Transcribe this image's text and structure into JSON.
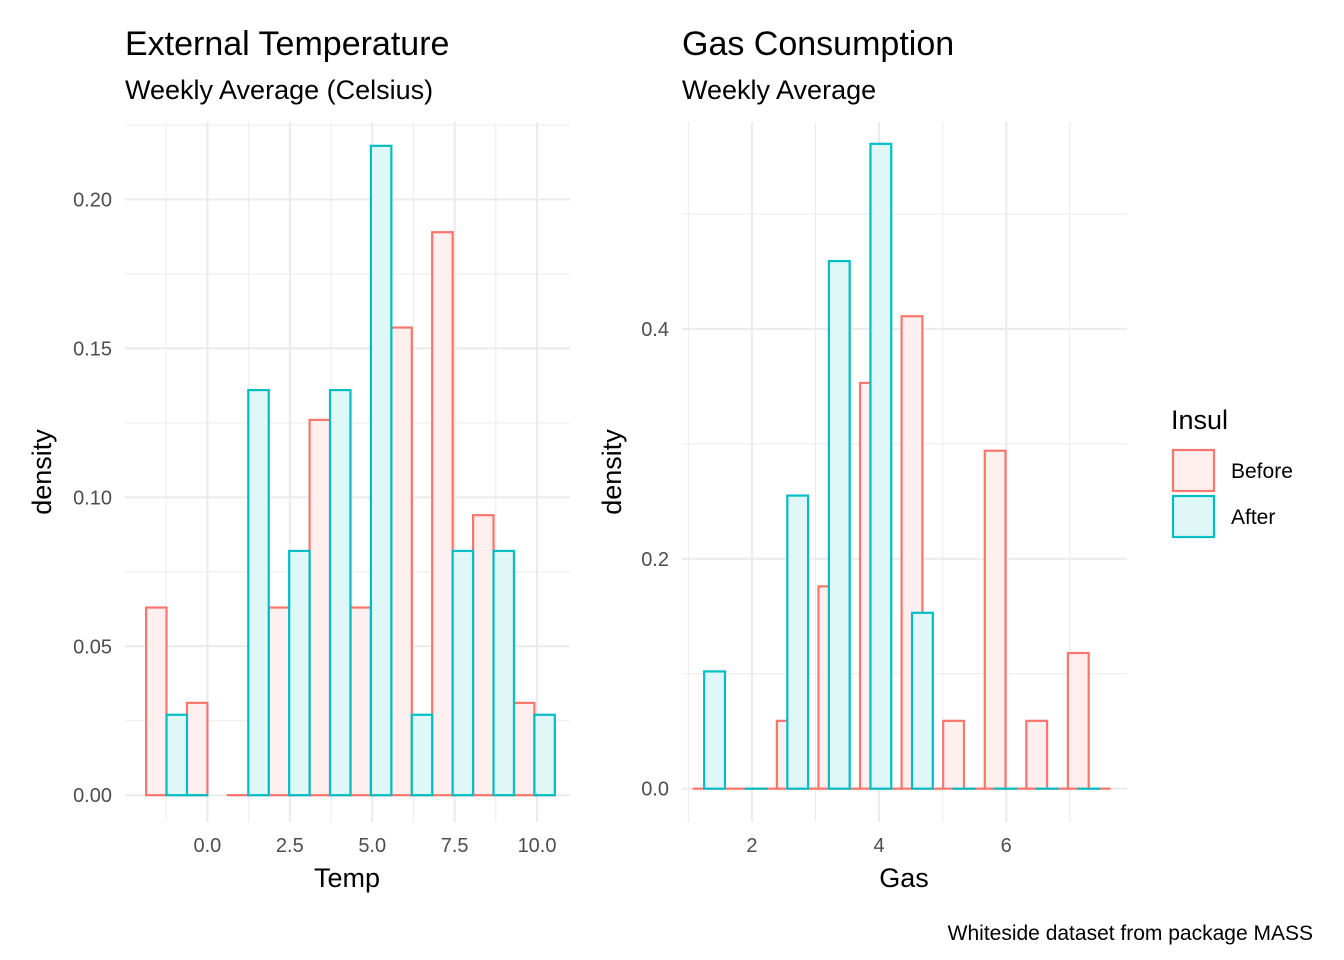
{
  "legend": {
    "title": "Insul",
    "items": [
      {
        "label": "Before",
        "stroke": "#f8766d",
        "fill": "#fff0ef"
      },
      {
        "label": "After",
        "stroke": "#00bfc4",
        "fill": "#e0f7f8"
      }
    ]
  },
  "caption": "Whiteside dataset from package MASS",
  "chart_data": [
    {
      "type": "bar",
      "subtype": "histogram-density",
      "title": "External Temperature",
      "subtitle": "Weekly Average (Celsius)",
      "xlabel": "Temp",
      "ylabel": "density",
      "xlim": [
        -2.5,
        11.0
      ],
      "ylim": [
        -0.009,
        0.226
      ],
      "x_ticks": [
        0.0,
        2.5,
        5.0,
        7.5,
        10.0
      ],
      "x_tick_labels": [
        "0.0",
        "2.5",
        "5.0",
        "7.5",
        "10.0"
      ],
      "y_ticks": [
        0.0,
        0.05,
        0.1,
        0.15,
        0.2
      ],
      "y_tick_labels": [
        "0.00",
        "0.05",
        "0.10",
        "0.15",
        "0.20"
      ],
      "grid": true,
      "bin_width": 0.62,
      "series": [
        {
          "name": "Before",
          "x": [
            -1.55,
            -0.93,
            -0.31,
            0.93,
            1.55,
            2.17,
            2.79,
            3.41,
            4.03,
            4.65,
            5.27,
            5.89,
            6.51,
            7.13,
            7.75,
            8.37,
            8.99,
            9.61,
            10.23
          ],
          "values": [
            0.063,
            0.0,
            0.031,
            0.0,
            0.0,
            0.063,
            0.0,
            0.126,
            0.0,
            0.063,
            0.0,
            0.157,
            0.0,
            0.189,
            0.0,
            0.094,
            0.0,
            0.031,
            0.0
          ]
        },
        {
          "name": "After",
          "x": [
            -0.93,
            -0.31,
            1.55,
            2.79,
            4.03,
            5.27,
            6.51,
            7.75,
            8.99,
            10.23
          ],
          "values": [
            0.027,
            0.0,
            0.136,
            0.082,
            0.136,
            0.218,
            0.027,
            0.082,
            0.082,
            0.027
          ]
        }
      ]
    },
    {
      "type": "bar",
      "subtype": "histogram-density",
      "title": "Gas Consumption",
      "subtitle": "Weekly Average",
      "xlabel": "Gas",
      "ylabel": "density",
      "xlim": [
        0.9,
        7.9
      ],
      "ylim": [
        -0.029,
        0.58
      ],
      "x_ticks": [
        2,
        4,
        6
      ],
      "x_tick_labels": [
        "2",
        "4",
        "6"
      ],
      "y_ticks": [
        0.0,
        0.2,
        0.4
      ],
      "y_tick_labels": [
        "0.0",
        "0.2",
        "0.4"
      ],
      "grid": true,
      "bin_width": 0.327,
      "series": [
        {
          "name": "Before",
          "x": [
            1.248,
            1.575,
            1.902,
            2.229,
            2.556,
            2.883,
            3.21,
            3.537,
            3.864,
            4.191,
            4.518,
            4.845,
            5.172,
            5.499,
            5.826,
            6.153,
            6.48,
            6.807,
            7.134,
            7.461
          ],
          "values": [
            0.0,
            0.0,
            0.0,
            0.0,
            0.059,
            0.0,
            0.176,
            0.0,
            0.353,
            0.0,
            0.411,
            0.0,
            0.059,
            0.0,
            0.294,
            0.0,
            0.059,
            0.0,
            0.118,
            0.0
          ]
        },
        {
          "name": "After",
          "x": [
            1.412,
            2.066,
            2.72,
            3.374,
            4.028,
            4.682,
            5.336,
            5.99,
            6.644,
            7.298
          ],
          "values": [
            0.102,
            0.0,
            0.255,
            0.459,
            0.561,
            0.153,
            0.0,
            0.0,
            0.0,
            0.0
          ]
        }
      ]
    }
  ]
}
